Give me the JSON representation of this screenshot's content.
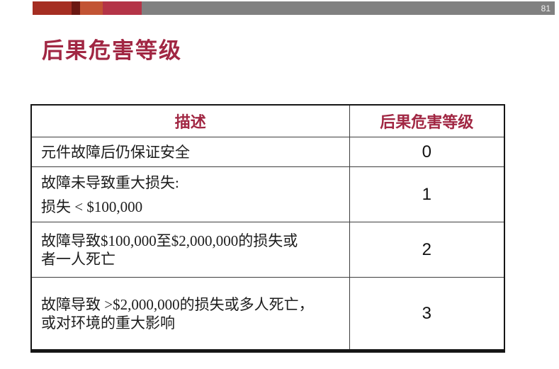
{
  "page_number": "81",
  "title": "后果危害等级",
  "table": {
    "headers": {
      "description": "描述",
      "level": "后果危害等级"
    },
    "rows": [
      {
        "desc_lines": [
          "元件故障后仍保证安全",
          ""
        ],
        "level": "0"
      },
      {
        "desc_lines": [
          "故障未导致重大损失:",
          "损失 < $100,000"
        ],
        "level": "1"
      },
      {
        "desc_lines": [
          "故障导致$100,000至$2,000,000的损失或",
          "者一人死亡"
        ],
        "level": "2"
      },
      {
        "desc_lines": [
          "故障导致 >$2,000,000的损失或多人死亡，",
          "或对环境的重大影响"
        ],
        "level": "3"
      }
    ]
  },
  "colors": {
    "accent1": "#A52E22",
    "accent2": "#6B1712",
    "accent3": "#C25434",
    "accent4": "#B43447",
    "bar_gray": "#808080",
    "title_red": "#A12743",
    "header_red": "#A12743",
    "border_dark": "#161616",
    "text_black": "#1C1C1C"
  }
}
